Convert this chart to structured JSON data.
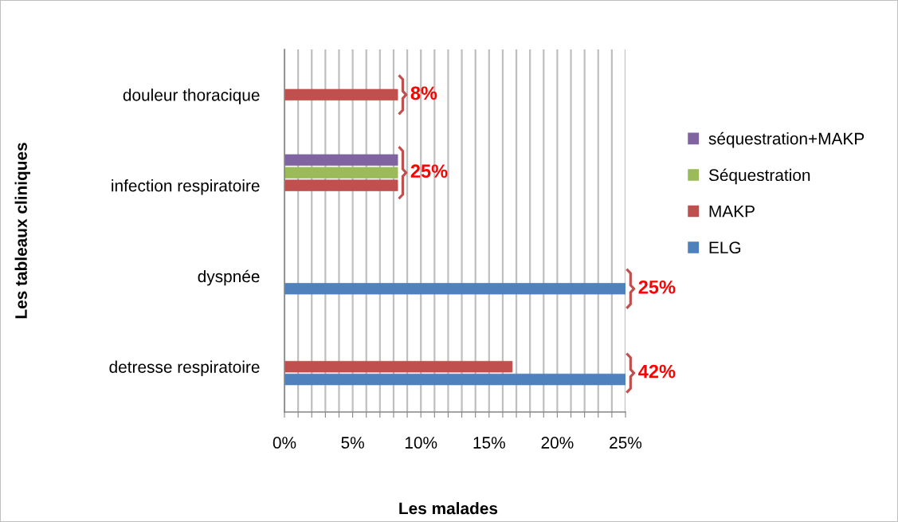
{
  "chart_data": {
    "type": "bar",
    "orientation": "horizontal",
    "xlabel": "Les malades",
    "ylabel": "Les tableaux cliniques",
    "categories": [
      "douleur thoracique",
      "infection respiratoire",
      "dyspnée",
      "detresse respiratoire"
    ],
    "series": [
      {
        "name": "ELG",
        "color": "#4f81bd",
        "values": [
          null,
          null,
          25,
          25
        ]
      },
      {
        "name": "MAKP",
        "color": "#c0504d",
        "values": [
          8.3,
          8.3,
          null,
          16.7
        ]
      },
      {
        "name": "Séquestration",
        "color": "#9bbb59",
        "values": [
          null,
          8.3,
          null,
          null
        ]
      },
      {
        "name": "séquestration+MAKP",
        "color": "#8064a2",
        "values": [
          null,
          8.3,
          null,
          null
        ]
      }
    ],
    "xlim": [
      0,
      25
    ],
    "xticks": [
      {
        "value": 0,
        "label": "0%"
      },
      {
        "value": 1,
        "label": null
      },
      {
        "value": 2,
        "label": null
      },
      {
        "value": 3,
        "label": null
      },
      {
        "value": 4,
        "label": null
      },
      {
        "value": 5,
        "label": "5%"
      },
      {
        "value": 6,
        "label": null
      },
      {
        "value": 7,
        "label": null
      },
      {
        "value": 8,
        "label": null
      },
      {
        "value": 9,
        "label": null
      },
      {
        "value": 10,
        "label": "10%"
      },
      {
        "value": 11,
        "label": null
      },
      {
        "value": 12,
        "label": null
      },
      {
        "value": 13,
        "label": null
      },
      {
        "value": 14,
        "label": null
      },
      {
        "value": 15,
        "label": "15%"
      },
      {
        "value": 16,
        "label": null
      },
      {
        "value": 17,
        "label": null
      },
      {
        "value": 18,
        "label": null
      },
      {
        "value": 19,
        "label": null
      },
      {
        "value": 20,
        "label": "20%"
      },
      {
        "value": 21,
        "label": null
      },
      {
        "value": 22,
        "label": null
      },
      {
        "value": 23,
        "label": null
      },
      {
        "value": 24,
        "label": null
      },
      {
        "value": 25,
        "label": "25%"
      }
    ],
    "grid": "x",
    "legend": "right",
    "annotations": [
      "8%",
      "25%",
      "25%",
      "42%"
    ]
  }
}
